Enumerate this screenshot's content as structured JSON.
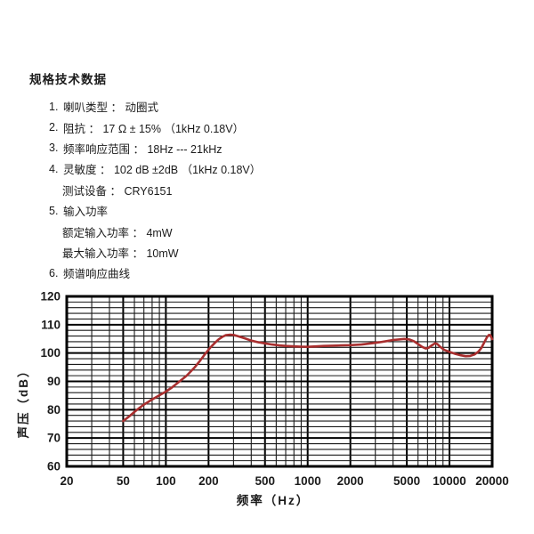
{
  "page": {
    "background": "#ffffff"
  },
  "spec": {
    "title": "规格技术数据",
    "items": [
      {
        "num": "1.",
        "text": "喇叭类型 ： 动圈式",
        "indent": 0
      },
      {
        "num": "2.",
        "text": "阻抗 ： 17 Ω ± 15% （1kHz 0.18V）",
        "indent": 0
      },
      {
        "num": "3.",
        "text": "频率响应范围 ： 18Hz --- 21kHz",
        "indent": 0
      },
      {
        "num": "4.",
        "text": "灵敏度 ： 102 dB ±2dB （1kHz 0.18V）",
        "indent": 0
      },
      {
        "num": "",
        "text": "测试设备 ： CRY6151",
        "indent": 1
      },
      {
        "num": "5.",
        "text": "输入功率",
        "indent": 0
      },
      {
        "num": "",
        "text": "额定输入功率 ： 4mW",
        "indent": 1
      },
      {
        "num": "",
        "text": "最大输入功率 ： 10mW",
        "indent": 1
      },
      {
        "num": "6.",
        "text": "频谱响应曲线",
        "indent": 0
      }
    ]
  },
  "chart_data": {
    "type": "line",
    "title": "",
    "xlabel": "频率（Hz）",
    "ylabel": "声压（dB）",
    "x_scale": "log",
    "xlim": [
      20,
      20000
    ],
    "ylim": [
      60,
      120
    ],
    "x_ticks_labeled": [
      20,
      50,
      100,
      200,
      500,
      1000,
      2000,
      5000,
      10000,
      20000
    ],
    "y_ticks": [
      60,
      70,
      80,
      90,
      100,
      110,
      120
    ],
    "y_minor_step": 2,
    "grid": "log-paper",
    "legend": "none",
    "colors": {
      "line": "#a82e2e",
      "grid_minor": "#1a1a1a",
      "grid_major": "#000000",
      "text": "#1b1b1b"
    },
    "series": [
      {
        "name": "frequency-response-curve",
        "points": [
          [
            50,
            76
          ],
          [
            55,
            77.6
          ],
          [
            60,
            79.2
          ],
          [
            65,
            80.6
          ],
          [
            70,
            81.8
          ],
          [
            80,
            83.6
          ],
          [
            90,
            85.1
          ],
          [
            100,
            86.4
          ],
          [
            110,
            87.8
          ],
          [
            125,
            90
          ],
          [
            140,
            92
          ],
          [
            160,
            95
          ],
          [
            175,
            97.4
          ],
          [
            190,
            99.8
          ],
          [
            205,
            101.8
          ],
          [
            220,
            103.4
          ],
          [
            235,
            104.8
          ],
          [
            250,
            105.7
          ],
          [
            265,
            106.3
          ],
          [
            285,
            106.5
          ],
          [
            305,
            106.3
          ],
          [
            330,
            105.8
          ],
          [
            360,
            105.2
          ],
          [
            400,
            104.4
          ],
          [
            450,
            103.8
          ],
          [
            500,
            103.4
          ],
          [
            560,
            103
          ],
          [
            630,
            102.7
          ],
          [
            700,
            102.5
          ],
          [
            800,
            102.35
          ],
          [
            900,
            102.25
          ],
          [
            1000,
            102.2
          ],
          [
            1150,
            102.35
          ],
          [
            1300,
            102.5
          ],
          [
            1500,
            102.6
          ],
          [
            1700,
            102.7
          ],
          [
            2000,
            102.8
          ],
          [
            2400,
            103
          ],
          [
            2800,
            103.4
          ],
          [
            3200,
            103.8
          ],
          [
            3600,
            104.2
          ],
          [
            4000,
            104.6
          ],
          [
            4400,
            104.8
          ],
          [
            4800,
            105
          ],
          [
            5200,
            104.8
          ],
          [
            5600,
            104.2
          ],
          [
            6000,
            103.2
          ],
          [
            6400,
            102.2
          ],
          [
            6800,
            101.6
          ],
          [
            7100,
            101.8
          ],
          [
            7500,
            102.7
          ],
          [
            7900,
            103.4
          ],
          [
            8200,
            103.2
          ],
          [
            8600,
            102.2
          ],
          [
            9200,
            101.1
          ],
          [
            10000,
            100.4
          ],
          [
            11000,
            99.7
          ],
          [
            12000,
            99.2
          ],
          [
            13000,
            98.9
          ],
          [
            14000,
            99
          ],
          [
            15000,
            99.5
          ],
          [
            16000,
            100.5
          ],
          [
            16800,
            101.8
          ],
          [
            17600,
            103.8
          ],
          [
            18400,
            105.6
          ],
          [
            19000,
            106.4
          ],
          [
            19400,
            106.3
          ],
          [
            20000,
            104.9
          ]
        ]
      }
    ]
  }
}
